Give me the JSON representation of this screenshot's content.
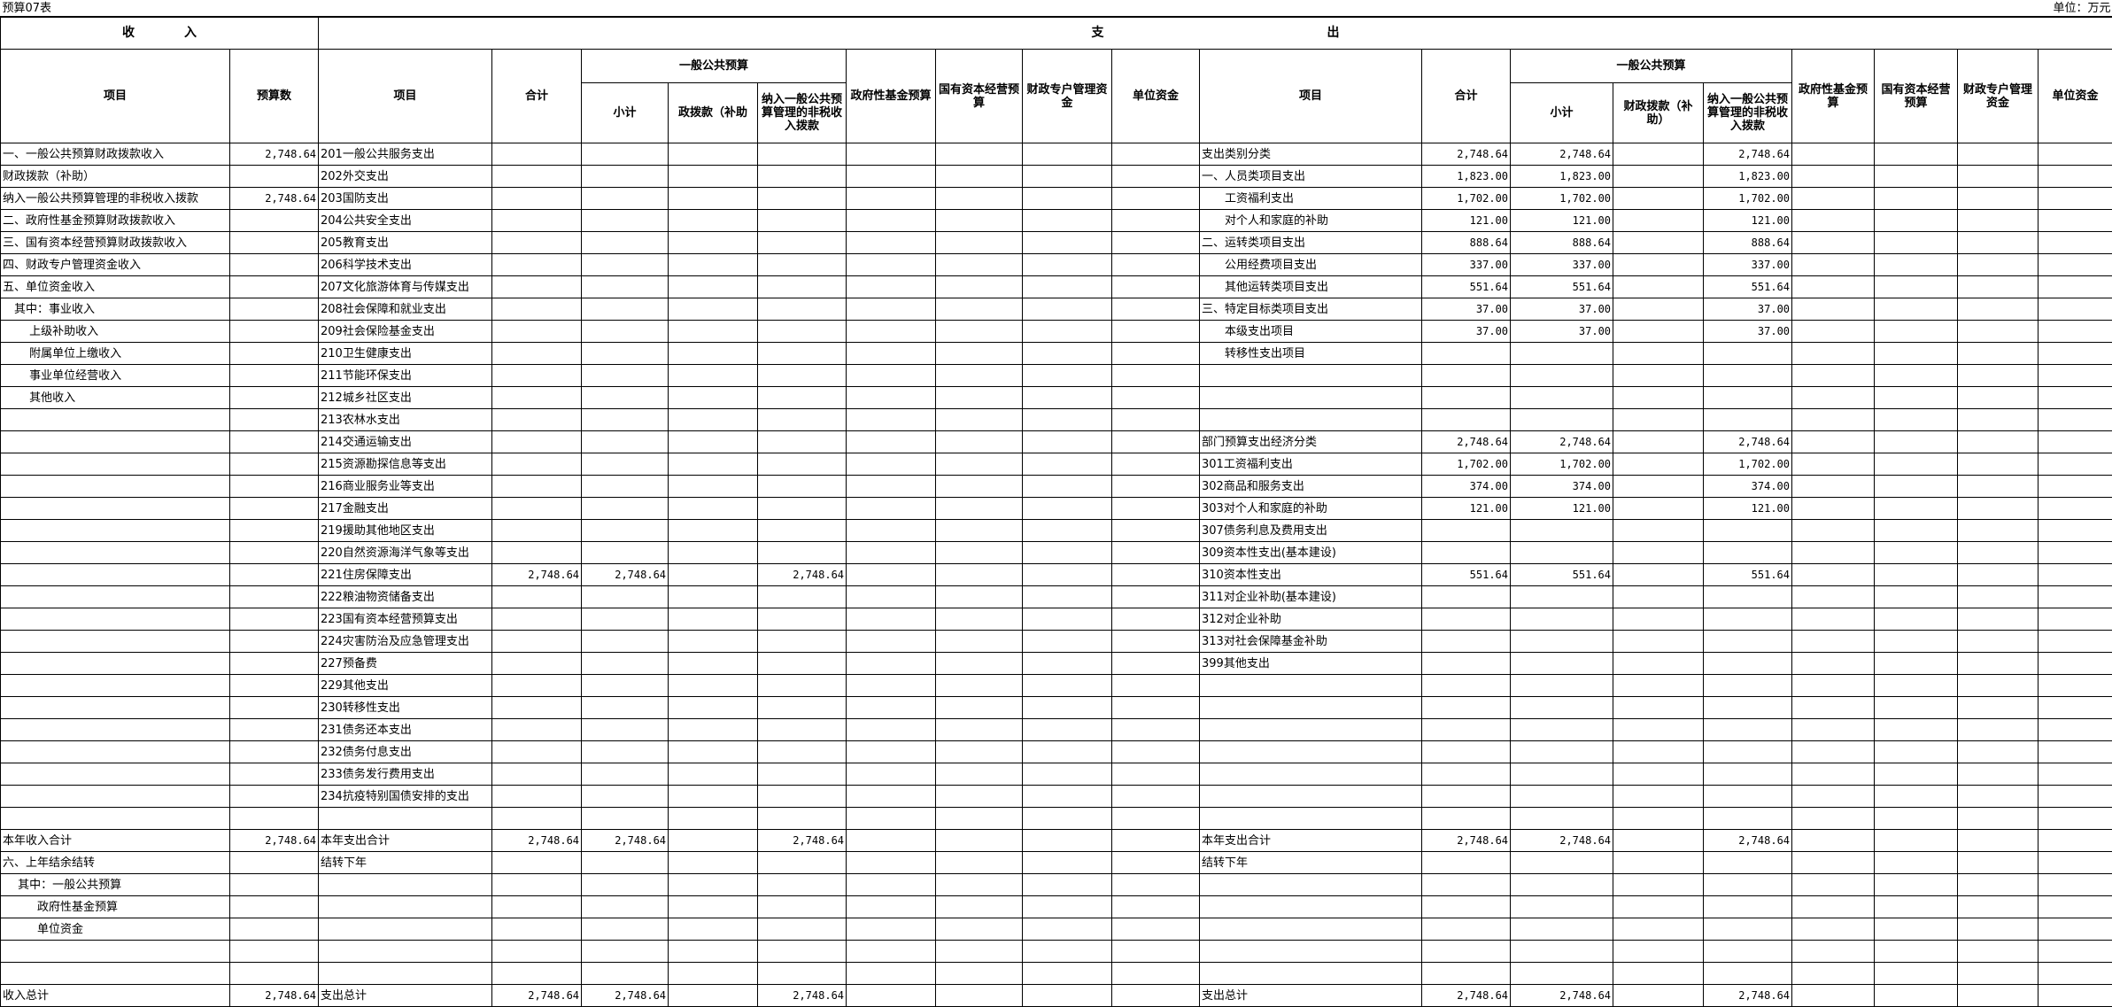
{
  "table_no": "预算07表",
  "unit": "单位：万元",
  "income_header": "收　　　　入",
  "expense_header": "支　　　　　　　　　　　　　　　　　　出",
  "columns": {
    "item": "项目",
    "budget": "预算数",
    "total": "合计",
    "general_budget": "一般公共预算",
    "subtotal": "小计",
    "fiscal_grant": "财政拨款（补助）",
    "fiscal_grant_clipped": "政拨款（补助",
    "nontax": "纳入一般公共预算管理的非税收入拨款",
    "gov_fund": "政府性基金预算",
    "state_capital": "国有资本经营预算",
    "special_account": "财政专户管理资金",
    "unit_fund": "单位资金"
  },
  "rows": [
    {
      "income": [
        "一、一般公共预算财政拨款收入",
        "2,748.64"
      ],
      "func": [
        "201一般公共服务支出"
      ],
      "econ": [
        "支出类别分类",
        "2,748.64",
        "2,748.64",
        "",
        "2,748.64"
      ]
    },
    {
      "income": [
        "财政拨款（补助）",
        ""
      ],
      "func": [
        "202外交支出"
      ],
      "econ": [
        "一、人员类项目支出",
        "1,823.00",
        "1,823.00",
        "",
        "1,823.00"
      ]
    },
    {
      "income": [
        "纳入一般公共预算管理的非税收入拨款",
        "2,748.64"
      ],
      "func": [
        "203国防支出"
      ],
      "econ": [
        "　　工资福利支出",
        "1,702.00",
        "1,702.00",
        "",
        "1,702.00"
      ]
    },
    {
      "income": [
        "二、政府性基金预算财政拨款收入",
        ""
      ],
      "func": [
        "204公共安全支出"
      ],
      "econ": [
        "　　对个人和家庭的补助",
        "121.00",
        "121.00",
        "",
        "121.00"
      ]
    },
    {
      "income": [
        "三、国有资本经营预算财政拨款收入",
        ""
      ],
      "func": [
        "205教育支出"
      ],
      "econ": [
        "二、运转类项目支出",
        "888.64",
        "888.64",
        "",
        "888.64"
      ]
    },
    {
      "income": [
        "四、财政专户管理资金收入",
        ""
      ],
      "func": [
        "206科学技术支出"
      ],
      "econ": [
        "　　公用经费项目支出",
        "337.00",
        "337.00",
        "",
        "337.00"
      ]
    },
    {
      "income": [
        "五、单位资金收入",
        ""
      ],
      "func": [
        "207文化旅游体育与传媒支出"
      ],
      "econ": [
        "　　其他运转类项目支出",
        "551.64",
        "551.64",
        "",
        "551.64"
      ]
    },
    {
      "income": [
        "　其中：事业收入",
        ""
      ],
      "func": [
        "208社会保障和就业支出"
      ],
      "econ": [
        "三、特定目标类项目支出",
        "37.00",
        "37.00",
        "",
        "37.00"
      ]
    },
    {
      "income": [
        "　　 上级补助收入",
        ""
      ],
      "func": [
        "209社会保险基金支出"
      ],
      "econ": [
        "　　本级支出项目",
        "37.00",
        "37.00",
        "",
        "37.00"
      ]
    },
    {
      "income": [
        "　　 附属单位上缴收入",
        ""
      ],
      "func": [
        "210卫生健康支出"
      ],
      "econ": [
        "　　转移性支出项目"
      ]
    },
    {
      "income": [
        "　　 事业单位经营收入",
        ""
      ],
      "func": [
        "211节能环保支出"
      ],
      "econ": [
        ""
      ]
    },
    {
      "income": [
        "　　 其他收入",
        ""
      ],
      "func": [
        "212城乡社区支出"
      ],
      "econ": [
        ""
      ]
    },
    {
      "income": [
        "",
        ""
      ],
      "func": [
        "213农林水支出"
      ],
      "econ": [
        ""
      ]
    },
    {
      "income": [
        "",
        ""
      ],
      "func": [
        "214交通运输支出"
      ],
      "econ": [
        "部门预算支出经济分类",
        "2,748.64",
        "2,748.64",
        "",
        "2,748.64"
      ]
    },
    {
      "income": [
        "",
        ""
      ],
      "func": [
        "215资源勘探信息等支出"
      ],
      "econ": [
        "301工资福利支出",
        "1,702.00",
        "1,702.00",
        "",
        "1,702.00"
      ]
    },
    {
      "income": [
        "",
        ""
      ],
      "func": [
        "216商业服务业等支出"
      ],
      "econ": [
        "302商品和服务支出",
        "374.00",
        "374.00",
        "",
        "374.00"
      ]
    },
    {
      "income": [
        "",
        ""
      ],
      "func": [
        "217金融支出"
      ],
      "econ": [
        "303对个人和家庭的补助",
        "121.00",
        "121.00",
        "",
        "121.00"
      ]
    },
    {
      "income": [
        "",
        ""
      ],
      "func": [
        "219援助其他地区支出"
      ],
      "econ": [
        "307债务利息及费用支出"
      ]
    },
    {
      "income": [
        "",
        ""
      ],
      "func": [
        "220自然资源海洋气象等支出"
      ],
      "econ": [
        "309资本性支出(基本建设)"
      ]
    },
    {
      "income": [
        "",
        ""
      ],
      "func": [
        "221住房保障支出",
        "2,748.64",
        "2,748.64",
        "",
        "2,748.64"
      ],
      "econ": [
        "310资本性支出",
        "551.64",
        "551.64",
        "",
        "551.64"
      ]
    },
    {
      "income": [
        "",
        ""
      ],
      "func": [
        "222粮油物资储备支出"
      ],
      "econ": [
        "311对企业补助(基本建设)"
      ]
    },
    {
      "income": [
        "",
        ""
      ],
      "func": [
        "223国有资本经营预算支出"
      ],
      "econ": [
        "312对企业补助"
      ]
    },
    {
      "income": [
        "",
        ""
      ],
      "func": [
        "224灾害防治及应急管理支出"
      ],
      "econ": [
        "313对社会保障基金补助"
      ]
    },
    {
      "income": [
        "",
        ""
      ],
      "func": [
        "227预备费"
      ],
      "econ": [
        "399其他支出"
      ]
    },
    {
      "income": [
        "",
        ""
      ],
      "func": [
        "229其他支出"
      ],
      "econ": [
        ""
      ]
    },
    {
      "income": [
        "",
        ""
      ],
      "func": [
        "230转移性支出"
      ],
      "econ": [
        ""
      ]
    },
    {
      "income": [
        "",
        ""
      ],
      "func": [
        "231债务还本支出"
      ],
      "econ": [
        ""
      ]
    },
    {
      "income": [
        "",
        ""
      ],
      "func": [
        "232债务付息支出"
      ],
      "econ": [
        ""
      ]
    },
    {
      "income": [
        "",
        ""
      ],
      "func": [
        "233债务发行费用支出"
      ],
      "econ": [
        ""
      ]
    },
    {
      "income": [
        "",
        ""
      ],
      "func": [
        "234抗疫特别国债安排的支出"
      ],
      "econ": [
        ""
      ]
    },
    {
      "income": [
        "",
        ""
      ],
      "func": [
        ""
      ],
      "econ": [
        ""
      ]
    },
    {
      "income": [
        "本年收入合计",
        "2,748.64"
      ],
      "func": [
        "本年支出合计",
        "2,748.64",
        "2,748.64",
        "",
        "2,748.64"
      ],
      "econ": [
        "本年支出合计",
        "2,748.64",
        "2,748.64",
        "",
        "2,748.64"
      ]
    },
    {
      "income": [
        "六、上年结余结转",
        ""
      ],
      "func": [
        "结转下年"
      ],
      "econ": [
        "结转下年"
      ]
    },
    {
      "income": [
        "　 其中：一般公共预算",
        ""
      ],
      "func": [
        ""
      ],
      "econ": [
        ""
      ]
    },
    {
      "income": [
        "　　　政府性基金预算",
        ""
      ],
      "func": [
        ""
      ],
      "econ": [
        ""
      ]
    },
    {
      "income": [
        "　　　单位资金",
        ""
      ],
      "func": [
        ""
      ],
      "econ": [
        ""
      ]
    },
    {
      "income": [
        "",
        ""
      ],
      "func": [
        ""
      ],
      "econ": [
        ""
      ]
    },
    {
      "income": [
        "",
        ""
      ],
      "func": [
        ""
      ],
      "econ": [
        ""
      ]
    },
    {
      "income": [
        "收入总计",
        "2,748.64"
      ],
      "func": [
        "支出总计",
        "2,748.64",
        "2,748.64",
        "",
        "2,748.64"
      ],
      "econ": [
        "支出总计",
        "2,748.64",
        "2,748.64",
        "",
        "2,748.64"
      ]
    }
  ]
}
